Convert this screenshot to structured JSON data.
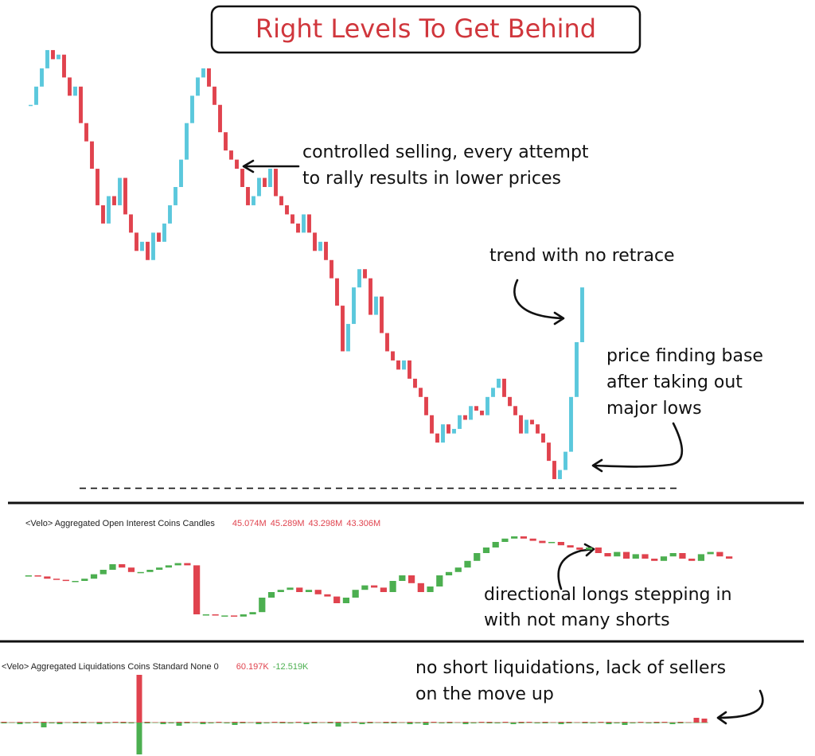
{
  "header": {
    "title": "Right Levels To Get Behind"
  },
  "annotations": [
    {
      "lines": [
        "controlled selling, every attempt",
        "to rally results in lower prices"
      ]
    },
    {
      "lines": [
        "trend with no retrace"
      ]
    },
    {
      "lines": [
        "price finding base",
        "after taking out",
        "major lows"
      ]
    },
    {
      "lines": [
        "directional longs stepping in",
        "with not many shorts"
      ]
    },
    {
      "lines": [
        "no short liquidations, lack of sellers",
        "on the  move up"
      ]
    }
  ],
  "chart_data": [
    {
      "type": "candlestick",
      "up_color": "#5bc8dc",
      "down_color": "#e0434e",
      "ylim": [
        -2,
        100
      ],
      "support": 0,
      "values": [
        84,
        88,
        92,
        96,
        94,
        95,
        90,
        86,
        88,
        80,
        76,
        70,
        62,
        58,
        64,
        62,
        68,
        60,
        56,
        52,
        54,
        50,
        56,
        54,
        58,
        62,
        66,
        72,
        80,
        86,
        90,
        92,
        88,
        84,
        78,
        74,
        72,
        70,
        66,
        62,
        64,
        68,
        66,
        70,
        64,
        62,
        60,
        58,
        56,
        60,
        56,
        52,
        54,
        50,
        46,
        40,
        30,
        36,
        44,
        48,
        46,
        38,
        42,
        34,
        30,
        28,
        26,
        28,
        24,
        22,
        20,
        16,
        12,
        10,
        14,
        12,
        13,
        16,
        15,
        18,
        17,
        16,
        20,
        22,
        24,
        20,
        18,
        16,
        12,
        15,
        14,
        12,
        10,
        6,
        2,
        4,
        8,
        20,
        32,
        44
      ]
    },
    {
      "type": "candlestick",
      "title": "<Velo> Aggregated Open Interest Coins Candles",
      "up_color": "#4caf50",
      "down_color": "#e0434e",
      "ylim": [
        0,
        100
      ],
      "readings": [
        {
          "text": "45.074M",
          "color": "#e0434e"
        },
        {
          "text": "45.289M",
          "color": "#e0434e"
        },
        {
          "text": "43.298M",
          "color": "#e0434e"
        },
        {
          "text": "43.306M",
          "color": "#e0434e"
        }
      ],
      "values": [
        55,
        54,
        52,
        51,
        50,
        50,
        52,
        56,
        60,
        65,
        62,
        58,
        58,
        60,
        62,
        64,
        66,
        64,
        20,
        20,
        19,
        19,
        18,
        20,
        22,
        35,
        40,
        42,
        44,
        40,
        42,
        38,
        36,
        30,
        35,
        42,
        46,
        44,
        40,
        50,
        55,
        48,
        40,
        45,
        55,
        58,
        62,
        68,
        75,
        80,
        85,
        88,
        90,
        88,
        86,
        84,
        85,
        82,
        80,
        78,
        80,
        75,
        72,
        76,
        70,
        74,
        70,
        68,
        72,
        75,
        70,
        68,
        74,
        76,
        72,
        70
      ]
    },
    {
      "type": "bar",
      "title": "<Velo> Aggregated Liquidations Coins Standard None 0",
      "long_color": "#e0434e",
      "short_color": "#4caf50",
      "ylim": [
        -40,
        60
      ],
      "readings": [
        {
          "text": "60.197K",
          "color": "#e0434e"
        },
        {
          "text": "-12.519K",
          "color": "#4caf50"
        }
      ],
      "longs": [
        1,
        0.5,
        1,
        0.5,
        1,
        1,
        0.5,
        1,
        0.5,
        1,
        1,
        0.5,
        1,
        0.5,
        1,
        1,
        0.5,
        60,
        1,
        0.5,
        1,
        0.5,
        1,
        1,
        0.5,
        1,
        0.5,
        1,
        0.5,
        1,
        1,
        0.5,
        1,
        0.5,
        1,
        1,
        0.5,
        1,
        0.5,
        1,
        0.5,
        1,
        1,
        0.5,
        1,
        0.5,
        1,
        0.5,
        1,
        1,
        0.5,
        1,
        0.5,
        1,
        1,
        0.5,
        1,
        0.5,
        1,
        0.5,
        1,
        1,
        0.5,
        1,
        0.5,
        1,
        1,
        0.5,
        1,
        0.5,
        1,
        1,
        0.5,
        1,
        0.5,
        1,
        1,
        0.5,
        1,
        0.5,
        1,
        0.5,
        1,
        1,
        0.5,
        1,
        0.5,
        6,
        5
      ],
      "shorts": [
        -1,
        -0.5,
        -2,
        -1,
        -0.5,
        -6,
        -1,
        -2,
        -0.5,
        -1,
        -1,
        -0.5,
        -2,
        -1,
        -0.5,
        -1,
        -1,
        -40,
        -1,
        -0.5,
        -2,
        -1,
        -4,
        -1,
        -0.5,
        -2,
        -1,
        -0.5,
        -1,
        -3,
        -1,
        -0.5,
        -2,
        -1,
        -0.5,
        -1,
        -1,
        -0.5,
        -2,
        -1,
        -0.5,
        -1,
        -5,
        -1,
        -0.5,
        -2,
        -1,
        -0.5,
        -1,
        -1,
        -0.5,
        -2,
        -1,
        -3,
        -0.5,
        -1,
        -1,
        -0.5,
        -2,
        -1,
        -0.5,
        -1,
        -1,
        -0.5,
        -2,
        -1,
        -0.5,
        -1,
        -1,
        -0.5,
        -2,
        -1,
        -0.5,
        -1,
        -1,
        -0.5,
        -2,
        -1,
        -3,
        -1,
        -0.5,
        -1,
        -1,
        -0.5,
        -2,
        -1,
        -0.5,
        -0.5,
        -0.5
      ]
    }
  ]
}
